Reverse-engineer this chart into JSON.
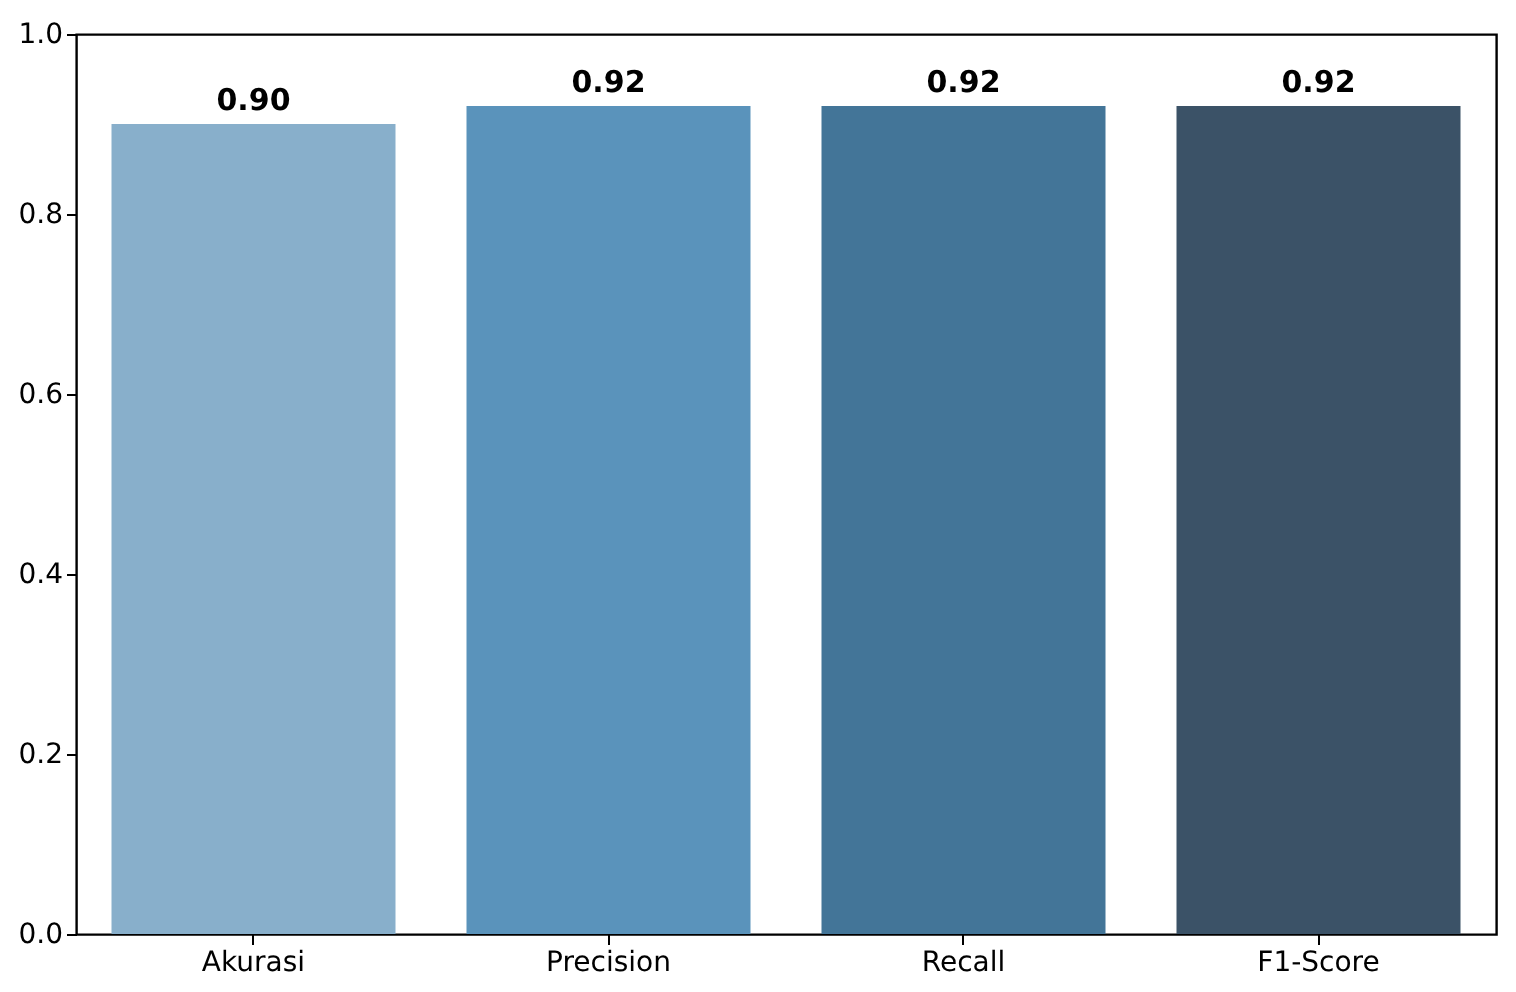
{
  "chart_data": {
    "type": "bar",
    "categories": [
      "Akurasi",
      "Precision",
      "Recall",
      "F1-Score"
    ],
    "values": [
      0.9,
      0.92,
      0.92,
      0.92
    ],
    "colors": [
      "#88afcb",
      "#5a93bb",
      "#437598",
      "#3b5267"
    ],
    "value_labels": [
      "0.90",
      "0.92",
      "0.92",
      "0.92"
    ],
    "ylim": [
      0,
      1
    ],
    "yticks": [
      {
        "value": 0,
        "label": "0.0"
      },
      {
        "value": 0.2,
        "label": "0.2"
      },
      {
        "value": 0.4,
        "label": "0.4"
      },
      {
        "value": 0.6,
        "label": "0.6"
      },
      {
        "value": 0.8,
        "label": "0.8"
      },
      {
        "value": 1,
        "label": "1.0"
      }
    ],
    "grid": false
  }
}
